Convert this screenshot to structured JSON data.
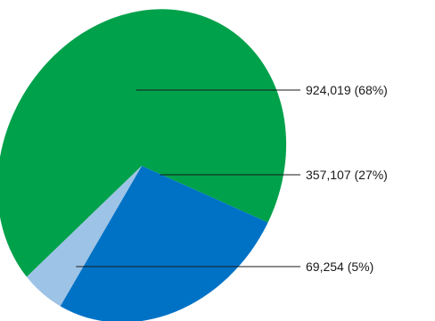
{
  "chart_data": {
    "type": "pie",
    "slices": [
      {
        "value": 924019,
        "percent": 68,
        "label": "924,019 (68%)",
        "color": "#00a14b"
      },
      {
        "value": 357107,
        "percent": 27,
        "label": "357,107 (27%)",
        "color": "#0072c6"
      },
      {
        "value": 69254,
        "percent": 5,
        "label": "69,254 (5%)",
        "color": "#9dc3e6"
      }
    ],
    "legend": "none",
    "grid": false
  }
}
